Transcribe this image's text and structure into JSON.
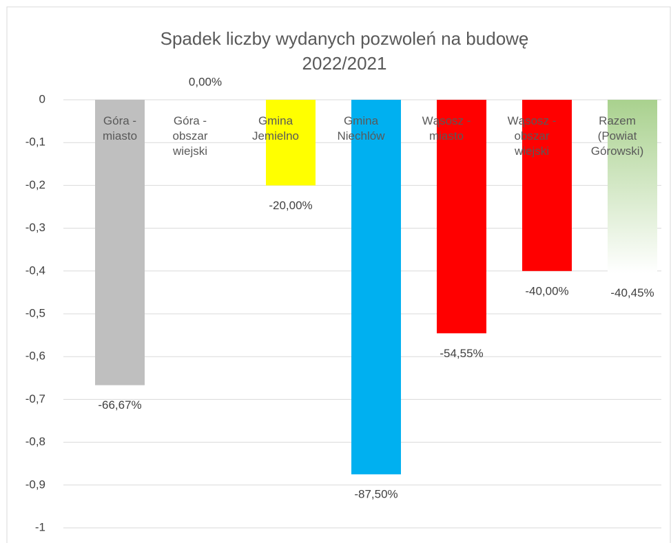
{
  "chart_data": {
    "type": "bar",
    "title": "Spadek liczby wydanych pozwoleń na budowę\n2022/2021",
    "categories": [
      "Góra -\nmiasto",
      "Góra -\nobszar\nwiejski",
      "Gmina\nJemielno",
      "Gmina\nNiechlów",
      "Wąsosz -\nmiasto",
      "Wąsosz -\nobszar\nwiejski",
      "Razem\n(Powiat\nGórowski)"
    ],
    "values": [
      -0.6667,
      0,
      -0.2,
      -0.875,
      -0.5455,
      -0.4,
      -0.4045
    ],
    "value_labels": [
      "-66,67%",
      "0,00%",
      "-20,00%",
      "-87,50%",
      "-54,55%",
      "-40,00%",
      "-40,45%"
    ],
    "colors": [
      "#bfbfbf",
      "#bfbfbf",
      "#ffff00",
      "#00b0f0",
      "#ff0000",
      "#ff0000",
      "#a9d18e"
    ],
    "ylim": [
      -1,
      0
    ],
    "yticks": [
      0,
      {
        "value": -0.1,
        "label": "-0,1"
      },
      {
        "value": -0.2,
        "label": "-0,2"
      },
      {
        "value": -0.3,
        "label": "-0,3"
      },
      {
        "value": -0.4,
        "label": "-0,4"
      },
      {
        "value": -0.5,
        "label": "-0,5"
      },
      {
        "value": -0.6,
        "label": "-0,6"
      },
      {
        "value": -0.7,
        "label": "-0,7"
      },
      {
        "value": -0.8,
        "label": "-0,8"
      },
      {
        "value": -0.9,
        "label": "-0,9"
      },
      -1
    ],
    "grid": true
  }
}
